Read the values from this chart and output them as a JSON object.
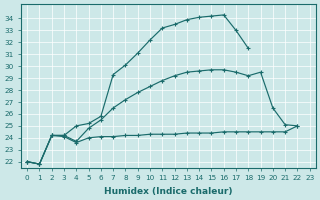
{
  "xlabel": "Humidex (Indice chaleur)",
  "bg_color": "#cde8e8",
  "line_color": "#1a6b6b",
  "xlim": [
    -0.5,
    23.5
  ],
  "ylim": [
    21.5,
    35.2
  ],
  "xticks": [
    0,
    1,
    2,
    3,
    4,
    5,
    6,
    7,
    8,
    9,
    10,
    11,
    12,
    13,
    14,
    15,
    16,
    17,
    18,
    19,
    20,
    21,
    22,
    23
  ],
  "yticks": [
    22,
    23,
    24,
    25,
    26,
    27,
    28,
    29,
    30,
    31,
    32,
    33,
    34
  ],
  "line1_x": [
    0,
    1,
    2,
    3,
    4,
    5,
    6,
    7,
    8,
    9,
    10,
    11,
    12,
    13,
    14,
    15,
    16,
    17,
    18
  ],
  "line1_y": [
    22.0,
    21.8,
    24.2,
    24.2,
    25.0,
    25.2,
    25.8,
    29.3,
    30.1,
    31.1,
    32.2,
    33.2,
    33.5,
    33.9,
    34.1,
    34.2,
    34.3,
    33.0,
    31.5
  ],
  "line2_x": [
    0,
    1,
    2,
    3,
    4,
    5,
    6,
    7,
    8,
    9,
    10,
    11,
    12,
    13,
    14,
    15,
    16,
    17,
    18,
    19,
    20,
    21,
    22
  ],
  "line2_y": [
    22.0,
    21.8,
    24.2,
    24.2,
    23.7,
    24.8,
    25.5,
    26.5,
    27.2,
    27.8,
    28.3,
    28.8,
    29.2,
    29.5,
    29.6,
    29.7,
    29.7,
    29.5,
    29.2,
    29.5,
    26.5,
    25.1,
    25.0
  ],
  "line3_x": [
    0,
    1,
    2,
    3,
    4,
    5,
    6,
    7,
    8,
    9,
    10,
    11,
    12,
    13,
    14,
    15,
    16,
    17,
    18,
    19,
    20,
    21,
    22
  ],
  "line3_y": [
    22.0,
    21.8,
    24.2,
    24.1,
    23.6,
    24.0,
    24.1,
    24.1,
    24.2,
    24.2,
    24.3,
    24.3,
    24.3,
    24.4,
    24.4,
    24.4,
    24.5,
    24.5,
    24.5,
    24.5,
    24.5,
    24.5,
    25.0
  ]
}
